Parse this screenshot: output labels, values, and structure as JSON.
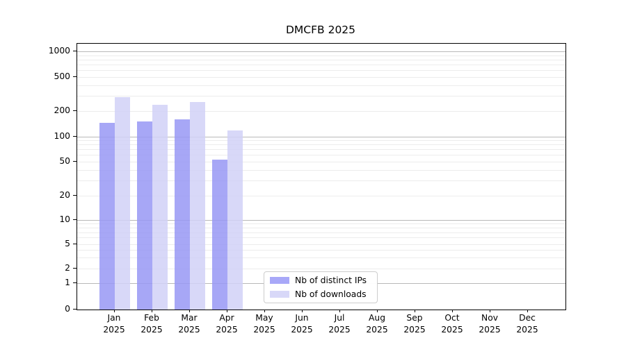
{
  "chart_data": {
    "type": "bar",
    "title": "DMCFB 2025",
    "categories": [
      "Jan 2025",
      "Feb 2025",
      "Mar 2025",
      "Apr 2025",
      "May 2025",
      "Jun 2025",
      "Jul 2025",
      "Aug 2025",
      "Sep 2025",
      "Oct 2025",
      "Nov 2025",
      "Dec 2025"
    ],
    "series": [
      {
        "name": "Nb of distinct IPs",
        "bar_color": "#9898f5",
        "swatch_color": "#a8a8f8",
        "values": [
          145,
          150,
          158,
          53,
          0,
          0,
          0,
          0,
          0,
          0,
          0,
          0
        ]
      },
      {
        "name": "Nb of downloads",
        "bar_color": "#d1d1f7",
        "swatch_color": "#d8d8f8",
        "values": [
          290,
          236,
          255,
          118,
          0,
          0,
          0,
          0,
          0,
          0,
          0,
          0
        ]
      }
    ],
    "y_axis": {
      "scale": "symlog",
      "tick_values": [
        0,
        1,
        2,
        5,
        10,
        20,
        50,
        100,
        200,
        500,
        1000
      ],
      "tick_labels": [
        "0",
        "1",
        "2",
        "5",
        "10",
        "20",
        "50",
        "100",
        "200",
        "500",
        "1000"
      ],
      "ylim": [
        0,
        1230
      ]
    },
    "grid": {
      "enabled": true,
      "major_values": [
        1,
        10,
        100,
        1000
      ],
      "minor_values": [
        2,
        3,
        4,
        5,
        6,
        7,
        8,
        9,
        20,
        30,
        40,
        50,
        60,
        70,
        80,
        90,
        200,
        300,
        400,
        500,
        600,
        700,
        800,
        900
      ],
      "major_color": "#b8b8b8",
      "minor_color": "#ececec"
    },
    "legend": {
      "position": "inside-bottom-center"
    },
    "xlabel": "",
    "ylabel": ""
  }
}
